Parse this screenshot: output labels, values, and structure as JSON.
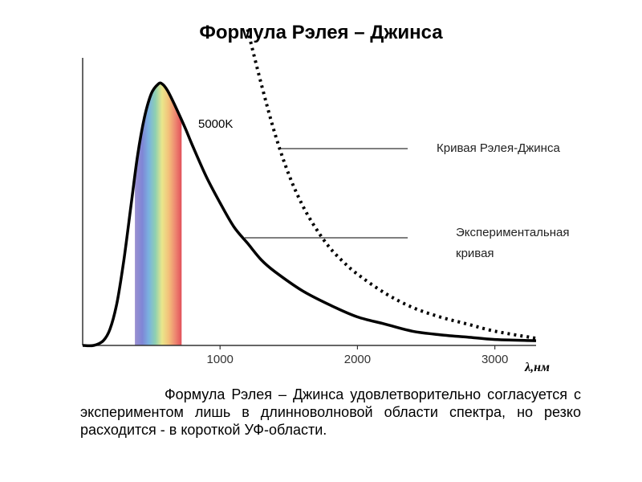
{
  "title": "Формула Рэлея – Джинса",
  "caption": "Формула Рэлея – Джинса удовлетворительно согласуется с экспериментом лишь в длинноволновой области спектра, но резко расходится - в короткой УФ-области.",
  "chart_data": {
    "type": "line",
    "title": "Формула Рэлея – Джинса",
    "xlabel": "λ,нм",
    "ylabel": "",
    "xlim": [
      0,
      3300
    ],
    "ylim": [
      0,
      1.2
    ],
    "x_ticks": [
      1000,
      2000,
      3000
    ],
    "x_tick_labels": [
      "1000",
      "2000",
      "3000"
    ],
    "grid": false,
    "visible_spectrum_nm": [
      380,
      720
    ],
    "series": [
      {
        "name": "Экспериментальная кривая",
        "style": "solid",
        "color": "#000000",
        "x": [
          0,
          80,
          150,
          200,
          250,
          300,
          350,
          400,
          450,
          500,
          550,
          580,
          620,
          680,
          750,
          800,
          900,
          1000,
          1100,
          1200,
          1300,
          1400,
          1600,
          1800,
          2000,
          2200,
          2400,
          2600,
          2800,
          3000,
          3300
        ],
        "y": [
          0,
          0.0,
          0.02,
          0.07,
          0.18,
          0.36,
          0.58,
          0.8,
          0.96,
          1.06,
          1.1,
          1.1,
          1.07,
          1.0,
          0.91,
          0.84,
          0.71,
          0.6,
          0.5,
          0.43,
          0.36,
          0.31,
          0.23,
          0.17,
          0.12,
          0.09,
          0.06,
          0.045,
          0.035,
          0.025,
          0.02
        ]
      },
      {
        "name": "Кривая Рэлея-Джинса",
        "style": "dotted",
        "color": "#000000",
        "x": [
          1200,
          1300,
          1400,
          1500,
          1600,
          1700,
          1800,
          1900,
          2000,
          2200,
          2400,
          2600,
          2800,
          3000,
          3300
        ],
        "y": [
          1.33,
          1.1,
          0.89,
          0.72,
          0.59,
          0.49,
          0.41,
          0.35,
          0.3,
          0.22,
          0.16,
          0.12,
          0.09,
          0.06,
          0.03
        ]
      }
    ],
    "annotations": [
      {
        "text": "5000K",
        "target": "peak"
      },
      {
        "text": "Кривая Рэлея-Джинса",
        "target": "Кривая Рэлея-Джинса"
      },
      {
        "text": "Экспериментальная кривая",
        "target": "Экспериментальная кривая"
      }
    ]
  }
}
